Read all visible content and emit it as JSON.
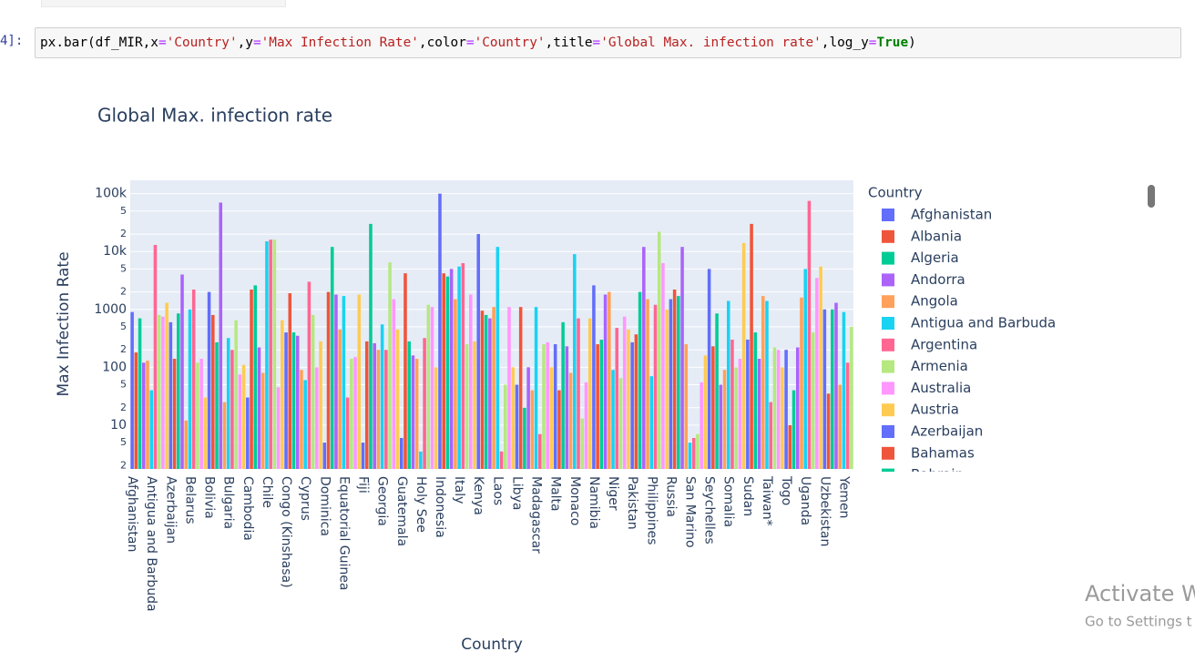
{
  "notebook": {
    "prompt": "4]:",
    "code": [
      {
        "text": "px.bar(df_MIR,x",
        "color": "#000000"
      },
      {
        "text": "=",
        "color": "#AA22FF"
      },
      {
        "text": "'Country'",
        "color": "#BA2121"
      },
      {
        "text": ",y",
        "color": "#000000"
      },
      {
        "text": "=",
        "color": "#AA22FF"
      },
      {
        "text": "'Max Infection Rate'",
        "color": "#BA2121"
      },
      {
        "text": ",color",
        "color": "#000000"
      },
      {
        "text": "=",
        "color": "#AA22FF"
      },
      {
        "text": "'Country'",
        "color": "#BA2121"
      },
      {
        "text": ",title",
        "color": "#000000"
      },
      {
        "text": "=",
        "color": "#AA22FF"
      },
      {
        "text": "'Global Max. infection rate'",
        "color": "#BA2121"
      },
      {
        "text": ",log_y",
        "color": "#000000"
      },
      {
        "text": "=",
        "color": "#AA22FF"
      },
      {
        "text": "True",
        "color": "#008000",
        "weight": "bold"
      },
      {
        "text": ")",
        "color": "#000000"
      }
    ],
    "watermark": [
      "Activate Wi",
      "Go to Settings t"
    ]
  },
  "chart_data": {
    "type": "bar",
    "title": "Global Max. infection rate",
    "x_label": "Country",
    "y_label": "Max Infection Rate",
    "legend_title": "Country",
    "log_y": true,
    "grid": true,
    "background": "#E5ECF6",
    "colors": [
      "#636efa",
      "#EF553B",
      "#00cc96",
      "#ab63fa",
      "#FFA15A",
      "#19d3f3",
      "#FF6692",
      "#B6E880",
      "#FF97FF",
      "#FECB52"
    ],
    "ylim": [
      1.75,
      170000
    ],
    "yticks": [
      {
        "value": 100000,
        "label": "100k"
      },
      {
        "value": 50000,
        "label": "5"
      },
      {
        "value": 20000,
        "label": "2"
      },
      {
        "value": 10000,
        "label": "10k"
      },
      {
        "value": 5000,
        "label": "5"
      },
      {
        "value": 2000,
        "label": "2"
      },
      1000,
      {
        "value": 500,
        "label": "5"
      },
      {
        "value": 200,
        "label": "2"
      },
      100,
      {
        "value": 50,
        "label": "5"
      },
      {
        "value": 20,
        "label": "2"
      },
      10,
      5,
      2
    ],
    "categories": [
      "Afghanistan",
      "Albania",
      "Algeria",
      "Andorra",
      "Angola",
      "Antigua and Barbuda",
      "Argentina",
      "Armenia",
      "Australia",
      "Austria",
      "Azerbaijan",
      "Bahamas",
      "Bahrain",
      null,
      null,
      "Belarus",
      null,
      null,
      null,
      null,
      "Bolivia",
      null,
      null,
      null,
      null,
      "Bulgaria",
      null,
      null,
      null,
      null,
      "Cambodia",
      null,
      null,
      null,
      null,
      "Chile",
      null,
      null,
      null,
      null,
      "Congo (Kinshasa)",
      null,
      null,
      null,
      null,
      "Cyprus",
      null,
      null,
      null,
      null,
      "Dominica",
      null,
      null,
      null,
      null,
      "Equatorial Guinea",
      null,
      null,
      null,
      null,
      "Fiji",
      null,
      null,
      null,
      null,
      "Georgia",
      null,
      null,
      null,
      null,
      "Guatemala",
      null,
      null,
      null,
      null,
      "Holy See",
      null,
      null,
      null,
      null,
      "Indonesia",
      null,
      null,
      null,
      null,
      "Italy",
      null,
      null,
      null,
      null,
      "Kenya",
      null,
      null,
      null,
      null,
      "Laos",
      null,
      null,
      null,
      null,
      "Libya",
      null,
      null,
      null,
      null,
      "Madagascar",
      null,
      null,
      null,
      null,
      "Malta",
      null,
      null,
      null,
      null,
      "Monaco",
      null,
      null,
      null,
      null,
      "Namibia",
      null,
      null,
      null,
      null,
      "Niger",
      null,
      null,
      null,
      null,
      "Pakistan",
      null,
      null,
      null,
      null,
      "Philippines",
      null,
      null,
      null,
      null,
      "Russia",
      null,
      null,
      null,
      null,
      "San Marino",
      null,
      null,
      null,
      null,
      "Seychelles",
      null,
      null,
      null,
      null,
      "Somalia",
      null,
      null,
      null,
      null,
      "Sudan",
      null,
      null,
      null,
      null,
      "Taiwan*",
      null,
      null,
      null,
      null,
      "Togo",
      null,
      null,
      null,
      null,
      "Uganda",
      null,
      null,
      null,
      null,
      "Uzbekistan",
      null,
      null,
      null,
      null,
      "Yemen",
      null,
      null
    ],
    "values": [
      900,
      180,
      700,
      120,
      130,
      40,
      13000,
      800,
      750,
      1300,
      600,
      140,
      850,
      4000,
      12,
      1000,
      2200,
      120,
      140,
      30,
      2000,
      800,
      270,
      70000,
      25,
      320,
      200,
      650,
      75,
      110,
      30,
      2200,
      2600,
      220,
      80,
      15000,
      16000,
      16000,
      45,
      650,
      400,
      1900,
      400,
      350,
      90,
      60,
      3000,
      800,
      100,
      280,
      5,
      2000,
      12000,
      1800,
      450,
      1700,
      30,
      140,
      150,
      1800,
      5,
      280,
      30000,
      260,
      200,
      550,
      200,
      6500,
      1500,
      450,
      6,
      4200,
      280,
      160,
      140,
      3.5,
      320,
      1200,
      1100,
      100,
      100000,
      4200,
      3700,
      5000,
      1500,
      5500,
      6300,
      250,
      1800,
      280,
      20000,
      950,
      800,
      700,
      1100,
      12000,
      3.5,
      50,
      1100,
      100,
      50,
      1100,
      20,
      100,
      40,
      1100,
      7,
      250,
      270,
      100,
      250,
      40,
      600,
      230,
      80,
      9000,
      700,
      13,
      55,
      700,
      2600,
      250,
      300,
      1800,
      2000,
      90,
      480,
      65,
      750,
      450,
      270,
      370,
      2000,
      12000,
      1500,
      70,
      1200,
      22000,
      6300,
      1000,
      1500,
      2200,
      1700,
      12000,
      250,
      5,
      6,
      7,
      55,
      160,
      5000,
      230,
      850,
      50,
      90,
      1400,
      300,
      100,
      140,
      14000,
      300,
      30000,
      400,
      140,
      1700,
      1400,
      25,
      220,
      200,
      100,
      200,
      10,
      40,
      220,
      1600,
      5000,
      75000,
      400,
      3500,
      5500,
      1000,
      35,
      1000,
      1300,
      50,
      900,
      120,
      500
    ]
  }
}
